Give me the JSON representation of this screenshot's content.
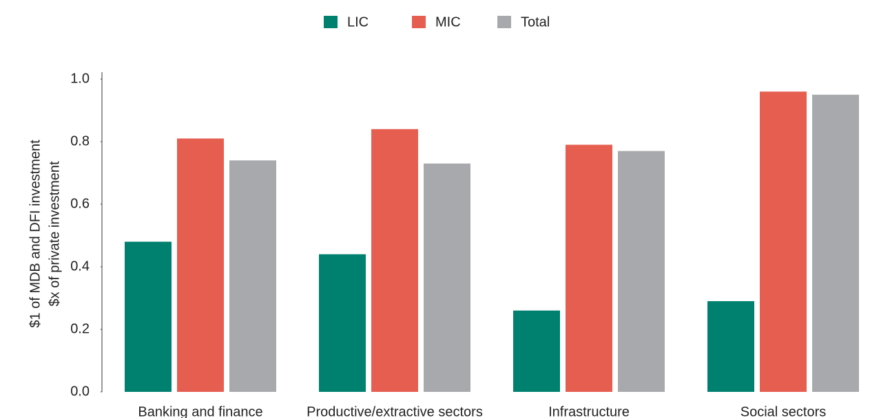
{
  "chart_data": {
    "type": "bar",
    "y_label": [
      "$1 of MDB and DFI investment",
      "$x of private investment"
    ],
    "categories": [
      "Banking and finance",
      "Productive/extractive sectors",
      "Infrastructure",
      "Social sectors"
    ],
    "series": [
      {
        "name": "LIC",
        "color": "#00806f",
        "values": [
          0.48,
          0.44,
          0.26,
          0.29
        ]
      },
      {
        "name": "MIC",
        "color": "#e65e50",
        "values": [
          0.81,
          0.84,
          0.79,
          0.96
        ]
      },
      {
        "name": "Total",
        "color": "#a7a9ac",
        "values": [
          0.74,
          0.73,
          0.77,
          0.95
        ]
      }
    ],
    "ylim": [
      0,
      1
    ],
    "yticks": [
      {
        "value": 0,
        "label": "0.0"
      },
      0.2,
      0.4,
      0.6,
      0.8,
      {
        "value": 1,
        "label": "1.0"
      }
    ],
    "legend": "top"
  }
}
